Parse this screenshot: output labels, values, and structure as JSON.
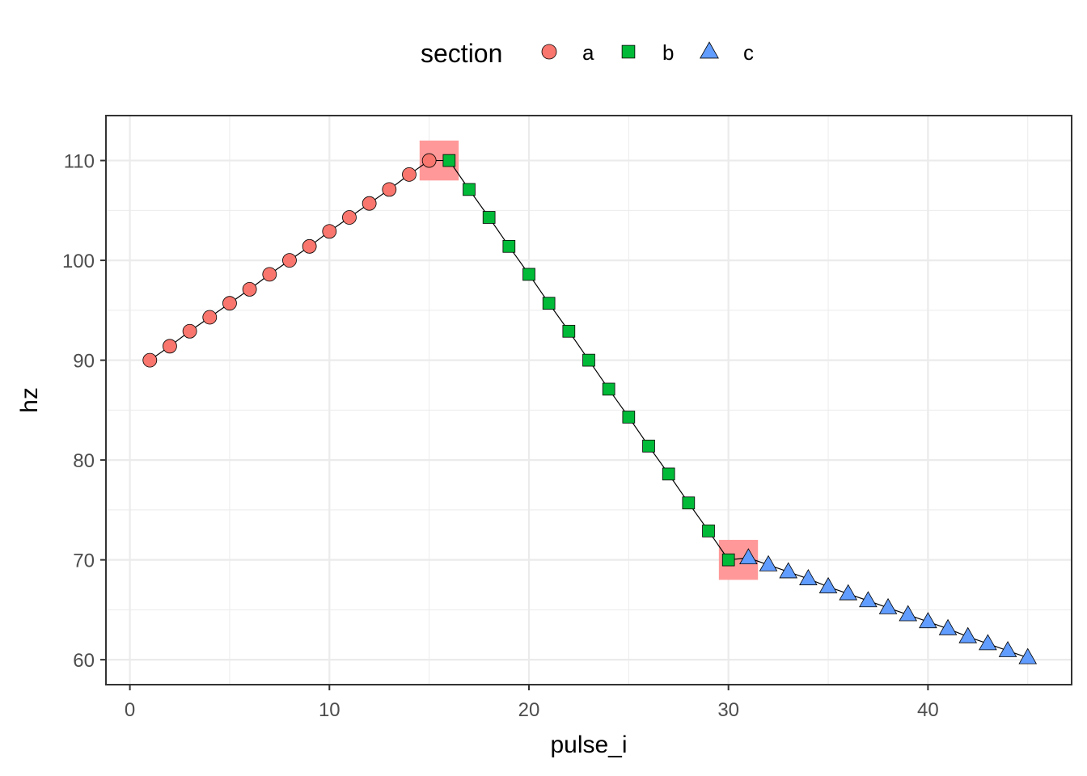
{
  "chart_data": {
    "type": "line",
    "xlabel": "pulse_i",
    "ylabel": "hz",
    "xlim": [
      -1.2,
      47.2
    ],
    "ylim": [
      57.5,
      114.5
    ],
    "x_ticks": [
      0,
      10,
      20,
      30,
      40
    ],
    "y_ticks": [
      60,
      70,
      80,
      90,
      100,
      110
    ],
    "grid": true,
    "legend": {
      "title": "section",
      "position": "top",
      "entries": [
        {
          "label": "a",
          "shape": "circle",
          "color": "#F8766D"
        },
        {
          "label": "b",
          "shape": "square",
          "color": "#00BA38"
        },
        {
          "label": "c",
          "shape": "triangle",
          "color": "#619CFF"
        }
      ]
    },
    "series": [
      {
        "name": "a",
        "x": [
          1,
          2,
          3,
          4,
          5,
          6,
          7,
          8,
          9,
          10,
          11,
          12,
          13,
          14,
          15
        ],
        "y": [
          90.0,
          91.4,
          92.9,
          94.3,
          95.7,
          97.1,
          98.6,
          100.0,
          101.4,
          102.9,
          104.3,
          105.7,
          107.1,
          108.6,
          110.0
        ]
      },
      {
        "name": "b",
        "x": [
          16,
          17,
          18,
          19,
          20,
          21,
          22,
          23,
          24,
          25,
          26,
          27,
          28,
          29,
          30
        ],
        "y": [
          110.0,
          107.1,
          104.3,
          101.4,
          98.6,
          95.7,
          92.9,
          90.0,
          87.1,
          84.3,
          81.4,
          78.6,
          75.7,
          72.9,
          70.0
        ]
      },
      {
        "name": "c",
        "x": [
          31,
          32,
          33,
          34,
          35,
          36,
          37,
          38,
          39,
          40,
          41,
          42,
          43,
          44,
          45
        ],
        "y": [
          70.2,
          69.5,
          68.8,
          68.1,
          67.3,
          66.6,
          65.9,
          65.2,
          64.5,
          63.8,
          63.1,
          62.3,
          61.6,
          60.9,
          60.2
        ]
      }
    ],
    "highlights": [
      {
        "x_center": 15.5,
        "y_center": 110.0
      },
      {
        "x_center": 30.5,
        "y_center": 70.0
      }
    ],
    "highlight_color": "#FF9999",
    "line_color": "#000000",
    "grid_color": "#EBEBEB",
    "panel_border_color": "#333333"
  }
}
